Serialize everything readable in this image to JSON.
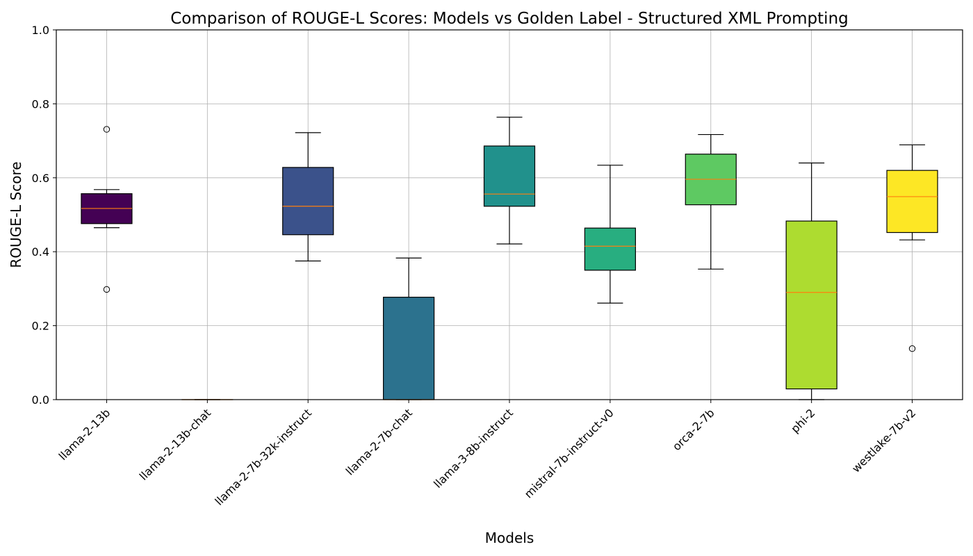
{
  "chart_data": {
    "type": "box",
    "title": "Comparison of ROUGE-L Scores: Models vs Golden Label - Structured XML Prompting",
    "xlabel": "Models",
    "ylabel": "ROUGE-L Score",
    "ylim": [
      0.0,
      1.0
    ],
    "yticks": [
      "0.0",
      "0.2",
      "0.4",
      "0.6",
      "0.8",
      "1.0"
    ],
    "grid": true,
    "median_color": "#ff7f0e",
    "categories": [
      "llama-2-13b",
      "llama-2-13b-chat",
      "llama-2-7b-32k-instruct",
      "llama-2-7b-chat",
      "llama-3-8b-instruct",
      "mistral-7b-instruct-v0",
      "orca-2-7b",
      "phi-2",
      "westlake-7b-v2"
    ],
    "boxes": [
      {
        "whisker_low": 0.465,
        "q1": 0.476,
        "median": 0.517,
        "q3": 0.557,
        "whisker_high": 0.568,
        "outliers": [
          0.731,
          0.298
        ],
        "color": "#440154"
      },
      {
        "whisker_low": 0.0,
        "q1": 0.0,
        "median": 0.0,
        "q3": 0.0,
        "whisker_high": 0.0,
        "outliers": [],
        "color": "#472d7b"
      },
      {
        "whisker_low": 0.375,
        "q1": 0.446,
        "median": 0.523,
        "q3": 0.628,
        "whisker_high": 0.722,
        "outliers": [],
        "color": "#3b528b"
      },
      {
        "whisker_low": 0.0,
        "q1": 0.0,
        "median": 0.0,
        "q3": 0.277,
        "whisker_high": 0.383,
        "outliers": [],
        "color": "#2c728e"
      },
      {
        "whisker_low": 0.421,
        "q1": 0.523,
        "median": 0.556,
        "q3": 0.686,
        "whisker_high": 0.764,
        "outliers": [],
        "color": "#21918c"
      },
      {
        "whisker_low": 0.261,
        "q1": 0.35,
        "median": 0.415,
        "q3": 0.464,
        "whisker_high": 0.634,
        "outliers": [],
        "color": "#28ae80"
      },
      {
        "whisker_low": 0.353,
        "q1": 0.527,
        "median": 0.596,
        "q3": 0.664,
        "whisker_high": 0.717,
        "outliers": [],
        "color": "#5ec962"
      },
      {
        "whisker_low": 0.0,
        "q1": 0.029,
        "median": 0.29,
        "q3": 0.483,
        "whisker_high": 0.64,
        "outliers": [],
        "color": "#addc30"
      },
      {
        "whisker_low": 0.432,
        "q1": 0.452,
        "median": 0.549,
        "q3": 0.62,
        "whisker_high": 0.689,
        "outliers": [
          0.138
        ],
        "color": "#fde725"
      }
    ]
  }
}
